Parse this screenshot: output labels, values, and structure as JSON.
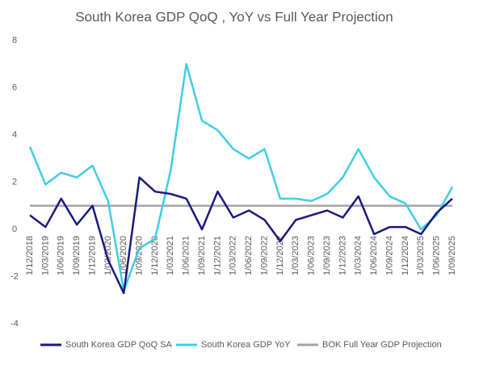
{
  "chart_data": {
    "type": "line",
    "title": "South Korea GDP  QoQ , YoY vs Full Year Projection",
    "categories": [
      "1/12/2018",
      "1/03/2019",
      "1/06/2019",
      "1/09/2019",
      "1/12/2019",
      "1/03/2020",
      "1/06/2020",
      "1/09/2020",
      "1/12/2020",
      "1/03/2021",
      "1/06/2021",
      "1/09/2021",
      "1/12/2021",
      "1/03/2022",
      "1/06/2022",
      "1/09/2022",
      "1/12/2022",
      "1/03/2023",
      "1/06/2023",
      "1/09/2023",
      "1/12/2023",
      "1/03/2024",
      "1/06/2024",
      "1/09/2024",
      "1/12/2024",
      "1/03/2025",
      "1/06/2025",
      "1/09/2025"
    ],
    "series": [
      {
        "name": "South Korea GDP QoQ SA",
        "color": "#1a1a7e",
        "values": [
          0.6,
          0.1,
          1.3,
          0.2,
          1.0,
          -1.3,
          -2.7,
          2.2,
          1.6,
          1.5,
          1.3,
          0.0,
          1.6,
          0.5,
          0.8,
          0.4,
          -0.5,
          0.4,
          0.6,
          0.8,
          0.5,
          1.4,
          -0.2,
          0.1,
          0.1,
          -0.2,
          0.7,
          1.3
        ]
      },
      {
        "name": "South Korea GDP YoY",
        "color": "#3fcde8",
        "values": [
          3.5,
          1.9,
          2.4,
          2.2,
          2.7,
          1.2,
          -2.6,
          -0.8,
          -0.4,
          2.5,
          7.0,
          4.6,
          4.2,
          3.4,
          3.0,
          3.4,
          1.3,
          1.3,
          1.2,
          1.5,
          2.2,
          3.4,
          2.2,
          1.4,
          1.1,
          0.0,
          0.6,
          1.8
        ]
      },
      {
        "name": "BOK Full Year GDP Projection",
        "color": "#a6a6a6",
        "values": [
          1.0,
          1.0,
          1.0,
          1.0,
          1.0,
          1.0,
          1.0,
          1.0,
          1.0,
          1.0,
          1.0,
          1.0,
          1.0,
          1.0,
          1.0,
          1.0,
          1.0,
          1.0,
          1.0,
          1.0,
          1.0,
          1.0,
          1.0,
          1.0,
          1.0,
          1.0,
          1.0,
          1.0
        ]
      }
    ],
    "ylim": [
      -4,
      8
    ],
    "yticks": [
      -4,
      -2,
      0,
      2,
      4,
      6,
      8
    ],
    "grid": false,
    "legend": "bottom"
  }
}
